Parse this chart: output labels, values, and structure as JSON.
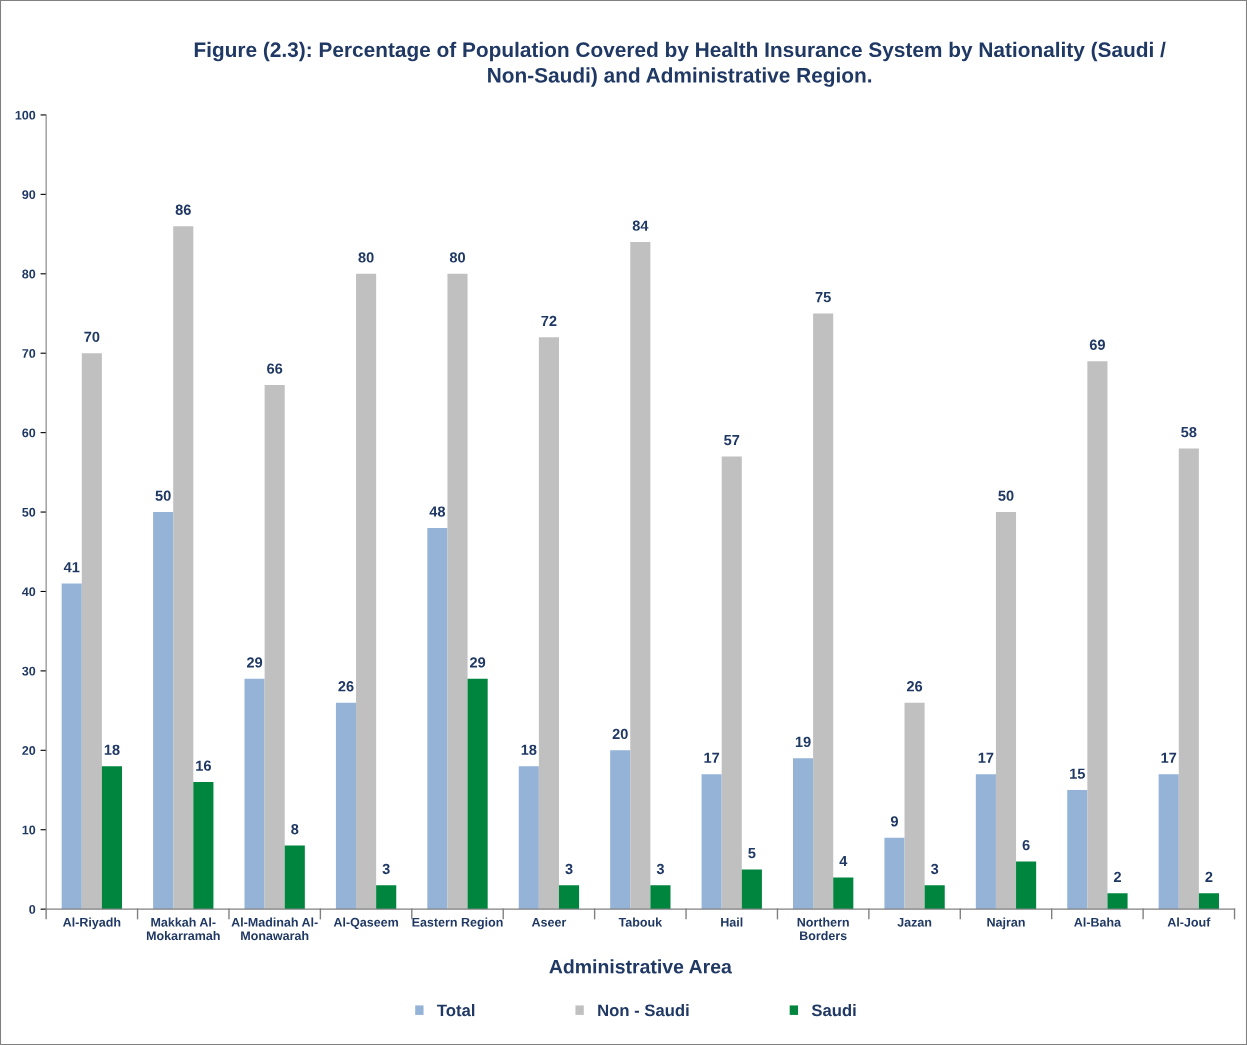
{
  "chart_data": {
    "type": "bar",
    "title": "Figure (2.3): Percentage of Population Covered by Health Insurance System by Nationality (Saudi /\nNon-Saudi) and Administrative Region.",
    "xlabel": "Administrative Area",
    "categories": [
      "Al-Riyadh",
      "Makkah Al-\nMokarramah",
      "Al-Madinah Al-\nMonawarah",
      "Al-Qaseem",
      "Eastern Region",
      "Aseer",
      "Tabouk",
      "Hail",
      "Northern\nBorders",
      "Jazan",
      "Najran",
      "Al-Baha",
      "Al-Jouf"
    ],
    "series": [
      {
        "name": "Total",
        "color": "#95b3d7",
        "values": [
          41,
          50,
          29,
          26,
          48,
          18,
          20,
          17,
          19,
          9,
          17,
          15,
          17
        ]
      },
      {
        "name": "Non - Saudi",
        "color": "#c0c0c0",
        "values": [
          70,
          86,
          66,
          80,
          80,
          72,
          84,
          57,
          75,
          26,
          50,
          69,
          58
        ]
      },
      {
        "name": "Saudi",
        "color": "#00853e",
        "values": [
          18,
          16,
          8,
          3,
          29,
          3,
          3,
          5,
          4,
          3,
          6,
          2,
          2
        ]
      }
    ],
    "ylim": [
      0,
      100
    ],
    "yticks": [
      0,
      10,
      20,
      30,
      40,
      50,
      60,
      70,
      80,
      90,
      100
    ],
    "grid": false,
    "legend": "bottom",
    "data_labels": true
  }
}
